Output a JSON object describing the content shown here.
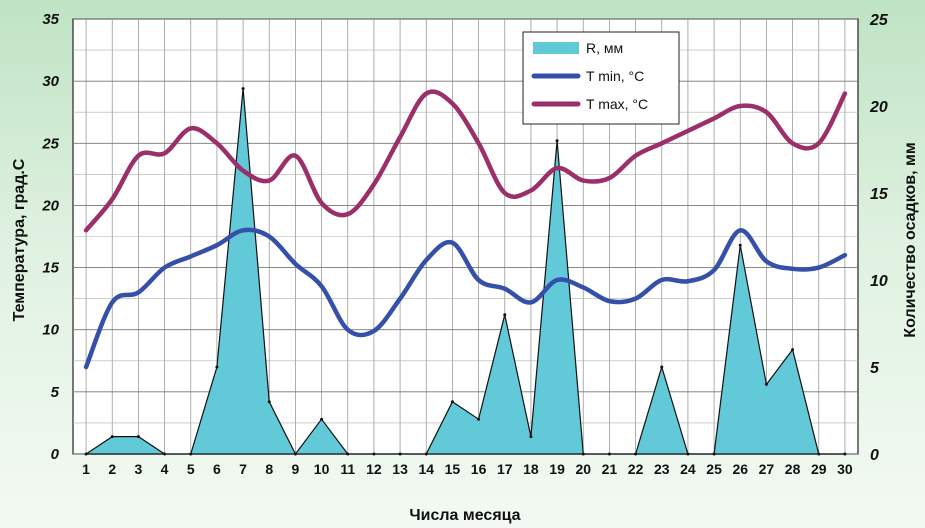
{
  "chart_data": {
    "type": "line+area",
    "xlabel": "Числа месяца",
    "ylabel_left": "Температура, град.С",
    "ylabel_right": "Количество осадков, мм",
    "categories": [
      1,
      2,
      3,
      4,
      5,
      6,
      7,
      8,
      9,
      10,
      11,
      12,
      13,
      14,
      15,
      16,
      17,
      18,
      19,
      20,
      21,
      22,
      23,
      24,
      25,
      26,
      27,
      28,
      29,
      30
    ],
    "y_left": {
      "min": 0,
      "max": 35,
      "ticks": [
        0,
        5,
        10,
        15,
        20,
        25,
        30,
        35
      ]
    },
    "y_right": {
      "min": 0,
      "max": 25,
      "ticks": [
        0,
        5,
        10,
        15,
        20,
        25
      ]
    },
    "grid": true,
    "legend_position": "top-right",
    "series": [
      {
        "name": "R, мм",
        "kind": "area",
        "axis": "right",
        "color": "#62c9d9",
        "values": [
          0,
          1,
          1,
          0,
          0,
          5,
          21,
          3,
          0,
          2,
          0,
          0,
          0,
          0,
          3,
          2,
          8,
          1,
          18,
          0,
          0,
          0,
          5,
          0,
          0,
          12,
          4,
          6,
          0,
          0
        ]
      },
      {
        "name": "T min, °C",
        "kind": "line",
        "axis": "left",
        "color": "#3550a8",
        "values": [
          7,
          12.2,
          13,
          15,
          15.9,
          16.8,
          18,
          17.5,
          15.3,
          13.5,
          10,
          9.9,
          12.5,
          15.6,
          17,
          14,
          13.3,
          12.2,
          14,
          13.4,
          12.3,
          12.5,
          14,
          13.9,
          14.8,
          18,
          15.5,
          14.9,
          15,
          16
        ]
      },
      {
        "name": "T max, °C",
        "kind": "line",
        "axis": "left",
        "color": "#9b2f6a",
        "values": [
          18,
          20.5,
          24,
          24.2,
          26.2,
          25,
          22.8,
          22,
          24,
          20.2,
          19.3,
          21.7,
          25.5,
          29,
          28.2,
          25,
          21,
          21.2,
          23,
          22,
          22.2,
          24,
          25,
          26,
          27,
          28,
          27.5,
          25,
          25,
          29
        ]
      }
    ]
  }
}
